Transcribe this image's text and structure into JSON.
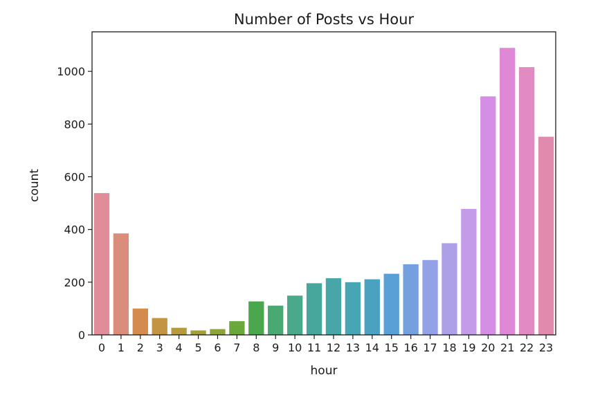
{
  "chart_data": {
    "type": "bar",
    "title": "Number of Posts vs Hour",
    "xlabel": "hour",
    "ylabel": "count",
    "categories": [
      "0",
      "1",
      "2",
      "3",
      "4",
      "5",
      "6",
      "7",
      "8",
      "9",
      "10",
      "11",
      "12",
      "13",
      "14",
      "15",
      "16",
      "17",
      "18",
      "19",
      "20",
      "21",
      "22",
      "23"
    ],
    "values": [
      538,
      385,
      100,
      64,
      27,
      17,
      22,
      52,
      127,
      111,
      149,
      196,
      215,
      200,
      211,
      232,
      268,
      284,
      348,
      478,
      905,
      1089,
      1016,
      752
    ],
    "colors": [
      "#e08c99",
      "#d98d7a",
      "#d38c4e",
      "#c49445",
      "#b59a3e",
      "#a39f3a",
      "#8da43a",
      "#6ba83c",
      "#4ba74d",
      "#4aa872",
      "#4aa88b",
      "#48a79d",
      "#47a6a8",
      "#48a5b3",
      "#4aa2c0",
      "#58a0d6",
      "#75a0e0",
      "#93a2e6",
      "#ad9fe8",
      "#c39be9",
      "#d58ee5",
      "#df88d8",
      "#e28ac2",
      "#e08bad"
    ],
    "ylim": [
      0,
      1150
    ],
    "yticks": [
      0,
      200,
      400,
      600,
      800,
      1000
    ],
    "grid": false,
    "legend": "none"
  }
}
